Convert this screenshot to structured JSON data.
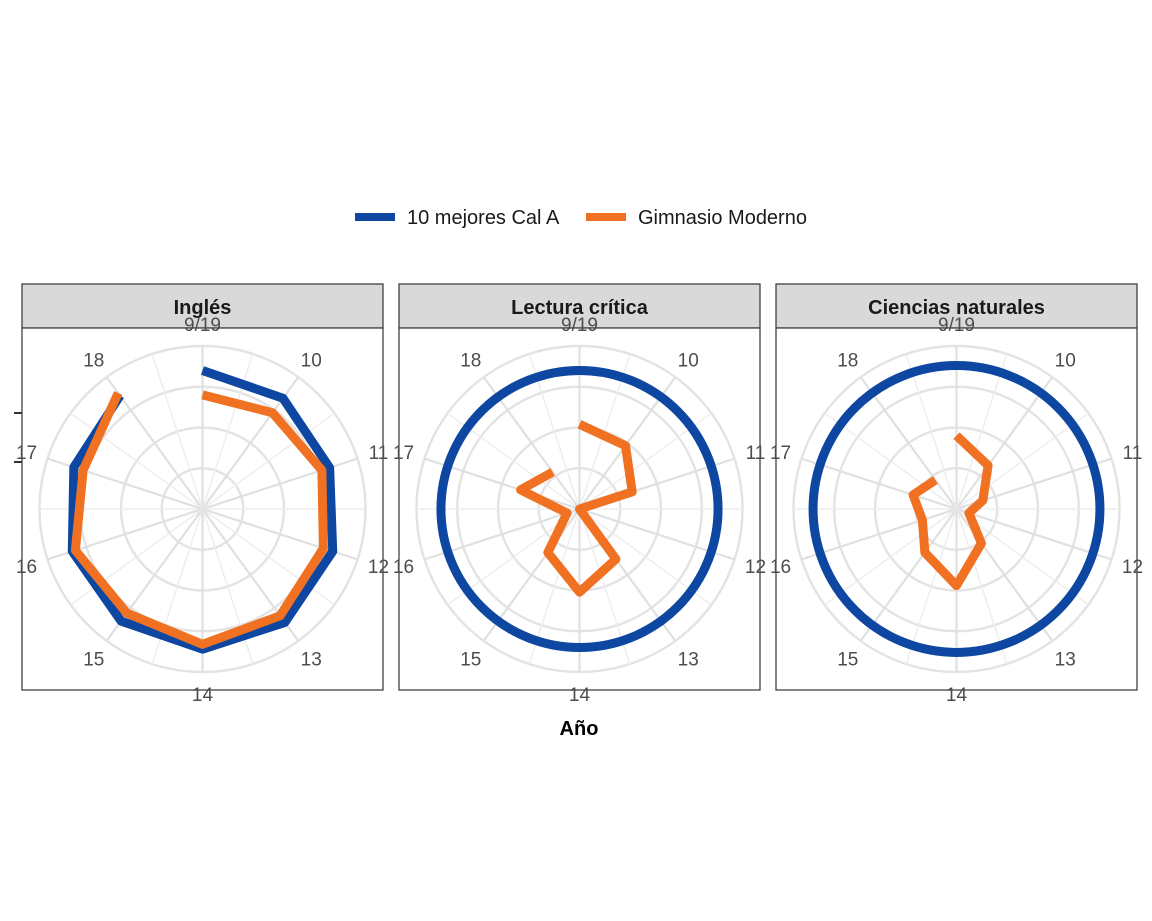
{
  "chart_data": {
    "type": "line",
    "coord": "polar",
    "xlabel": "Año",
    "ylabel": "",
    "x": [
      "9/19",
      "10",
      "11",
      "12",
      "13",
      "14",
      "15",
      "16",
      "17",
      "18"
    ],
    "legend": {
      "position": "top"
    },
    "series": [
      {
        "name": "10 mejores Cal A",
        "color": "#0d47a1"
      },
      {
        "name": "Gimnasio Moderno",
        "color": "#f07122"
      }
    ],
    "panels": [
      {
        "title": "Inglés",
        "ylim": [
          0,
          100
        ],
        "values": {
          "10 mejores Cal A": [
            85,
            84,
            82,
            84,
            86,
            86,
            85,
            84,
            83,
            86
          ],
          "Gimnasio Moderno": [
            70,
            73,
            77,
            78,
            81,
            83,
            79,
            82,
            77,
            88
          ]
        }
      },
      {
        "title": "Lectura crítica",
        "ylim": [
          0,
          100
        ],
        "values": {
          "10 mejores Cal A": [
            85,
            85,
            85,
            85,
            85,
            85,
            85,
            85,
            85,
            85
          ],
          "Gimnasio Moderno": [
            52,
            48,
            34,
            0,
            38,
            51,
            33,
            8,
            38,
            28
          ]
        }
      },
      {
        "title": "Ciencias naturales",
        "ylim": [
          0,
          100
        ],
        "values": {
          "10 mejores Cal A": [
            88,
            88,
            88,
            88,
            88,
            88,
            88,
            88,
            88,
            88
          ],
          "Gimnasio Moderno": [
            45,
            33,
            17,
            8,
            26,
            47,
            33,
            22,
            28,
            22
          ]
        }
      }
    ]
  }
}
